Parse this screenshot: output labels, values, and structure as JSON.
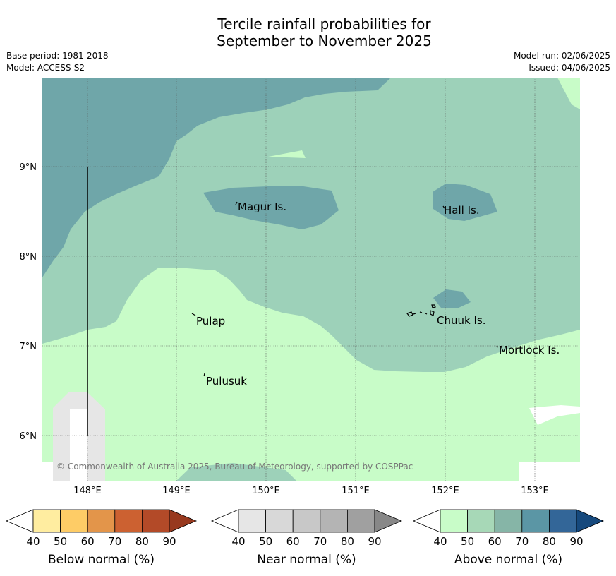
{
  "header": {
    "title_line1": "Tercile rainfall probabilities for",
    "title_line2": "September to November 2025",
    "base_period": "Base period: 1981-2018",
    "model": "Model: ACCESS-S2",
    "model_run": "Model run: 02/06/2025",
    "issued": "Issued: 04/06/2025"
  },
  "map": {
    "lon_ticks": [
      "148°E",
      "149°E",
      "150°E",
      "151°E",
      "152°E",
      "153°E"
    ],
    "lat_ticks": [
      "9°N",
      "8°N",
      "7°N",
      "6°N"
    ],
    "places": [
      {
        "name": "Magur Is."
      },
      {
        "name": "Hall Is."
      },
      {
        "name": "Pulap"
      },
      {
        "name": "Chuuk Is."
      },
      {
        "name": "Mortlock Is."
      },
      {
        "name": "Pulusuk"
      }
    ],
    "copyright": "© Commonwealth of Australia 2025, Bureau of Meteorology, supported by COSPPac",
    "colors": {
      "above_light": "#c8fcc8",
      "above_mid": "#9dd1b9",
      "above_dark": "#6fa6a9",
      "near_light": "#e6e6e6"
    }
  },
  "legends": [
    {
      "label": "Below normal (%)",
      "ticks": [
        "40",
        "50",
        "60",
        "70",
        "80",
        "90"
      ],
      "colors": [
        "#ffffff",
        "#ffeda0",
        "#fecc66",
        "#e3954a",
        "#cc6131",
        "#b34a28",
        "#98391f"
      ]
    },
    {
      "label": "Near normal (%)",
      "ticks": [
        "40",
        "50",
        "60",
        "70",
        "80",
        "90"
      ],
      "colors": [
        "#ffffff",
        "#e6e6e6",
        "#d8d8d8",
        "#c8c8c8",
        "#b4b4b4",
        "#a0a0a0",
        "#888888"
      ]
    },
    {
      "label": "Above normal (%)",
      "ticks": [
        "40",
        "50",
        "60",
        "70",
        "80",
        "90"
      ],
      "colors": [
        "#ffffff",
        "#c8fcc8",
        "#a7d8b7",
        "#86b5a7",
        "#5b96a5",
        "#336698",
        "#16497d"
      ]
    }
  ]
}
